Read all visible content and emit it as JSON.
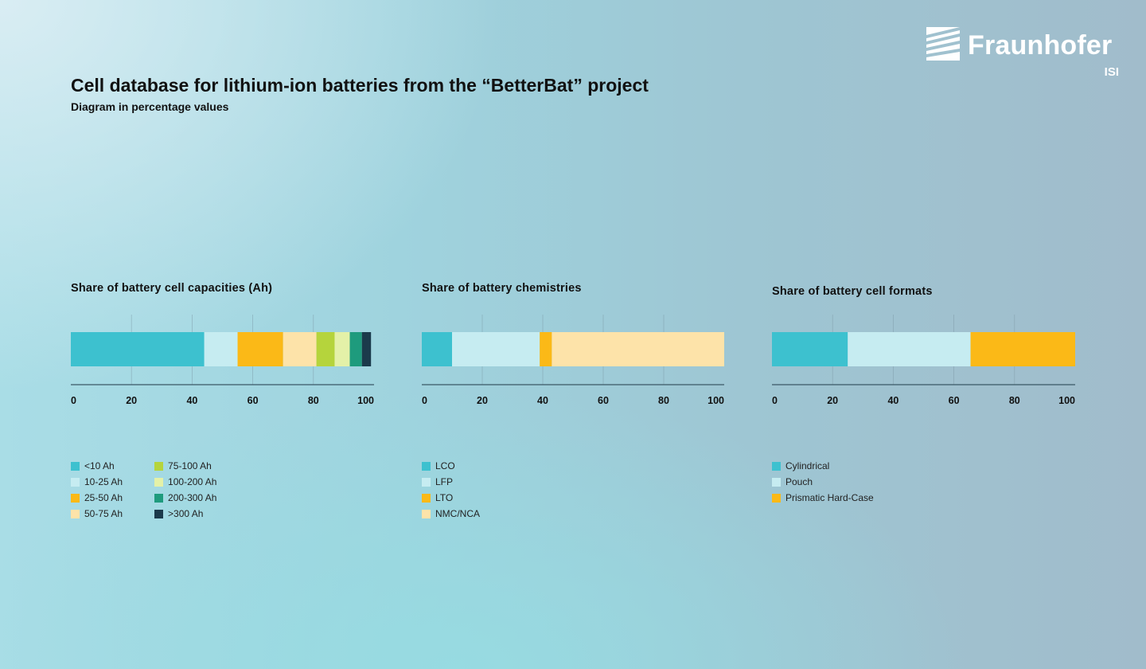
{
  "header": {
    "title": "Cell database for lithium-ion batteries from the “BetterBat” project",
    "subtitle": "Diagram in percentage values"
  },
  "logo": {
    "name": "Fraunhofer",
    "sub": "ISI",
    "icon": "fraunhofer-logo-icon",
    "color": "#ffffff"
  },
  "chart_data": [
    {
      "type": "bar",
      "orientation": "horizontal-stacked",
      "title": "Share of battery cell capacities (Ah)",
      "xlim": [
        0,
        100
      ],
      "xticks": [
        0,
        20,
        40,
        60,
        80,
        100
      ],
      "grid": true,
      "legend_position": "bottom",
      "series": [
        {
          "name": "<10 Ah",
          "value": 44,
          "color": "#3dc1cf"
        },
        {
          "name": "10-25 Ah",
          "value": 11,
          "color": "#c6ecf1"
        },
        {
          "name": "25-50 Ah",
          "value": 15,
          "color": "#fbb917"
        },
        {
          "name": "50-75 Ah",
          "value": 11,
          "color": "#fde3a9"
        },
        {
          "name": "75-100 Ah",
          "value": 6,
          "color": "#b5d43c"
        },
        {
          "name": "100-200 Ah",
          "value": 5,
          "color": "#e4f1a8"
        },
        {
          "name": "200-300 Ah",
          "value": 4,
          "color": "#1e9b7d"
        },
        {
          "name": ">300 Ah",
          "value": 3,
          "color": "#1b3a4b"
        }
      ]
    },
    {
      "type": "bar",
      "orientation": "horizontal-stacked",
      "title": "Share of battery chemistries",
      "xlim": [
        0,
        100
      ],
      "xticks": [
        0,
        20,
        40,
        60,
        80,
        100
      ],
      "grid": true,
      "legend_position": "bottom",
      "series": [
        {
          "name": "LCO",
          "value": 10,
          "color": "#3dc1cf"
        },
        {
          "name": "LFP",
          "value": 29,
          "color": "#c6ecf1"
        },
        {
          "name": "LTO",
          "value": 4,
          "color": "#fbb917"
        },
        {
          "name": "NMC/NCA",
          "value": 57,
          "color": "#fde3a9"
        }
      ]
    },
    {
      "type": "bar",
      "orientation": "horizontal-stacked",
      "title": "Share of battery cell formats",
      "xlim": [
        0,
        100
      ],
      "xticks": [
        0,
        20,
        40,
        60,
        80,
        100
      ],
      "grid": true,
      "legend_position": "bottom",
      "series": [
        {
          "name": "Cylindrical",
          "value": 25,
          "color": "#3dc1cf"
        },
        {
          "name": "Pouch",
          "value": 40.5,
          "color": "#c6ecf1"
        },
        {
          "name": "Prismatic Hard-Case",
          "value": 34.5,
          "color": "#fbb917"
        }
      ]
    }
  ]
}
